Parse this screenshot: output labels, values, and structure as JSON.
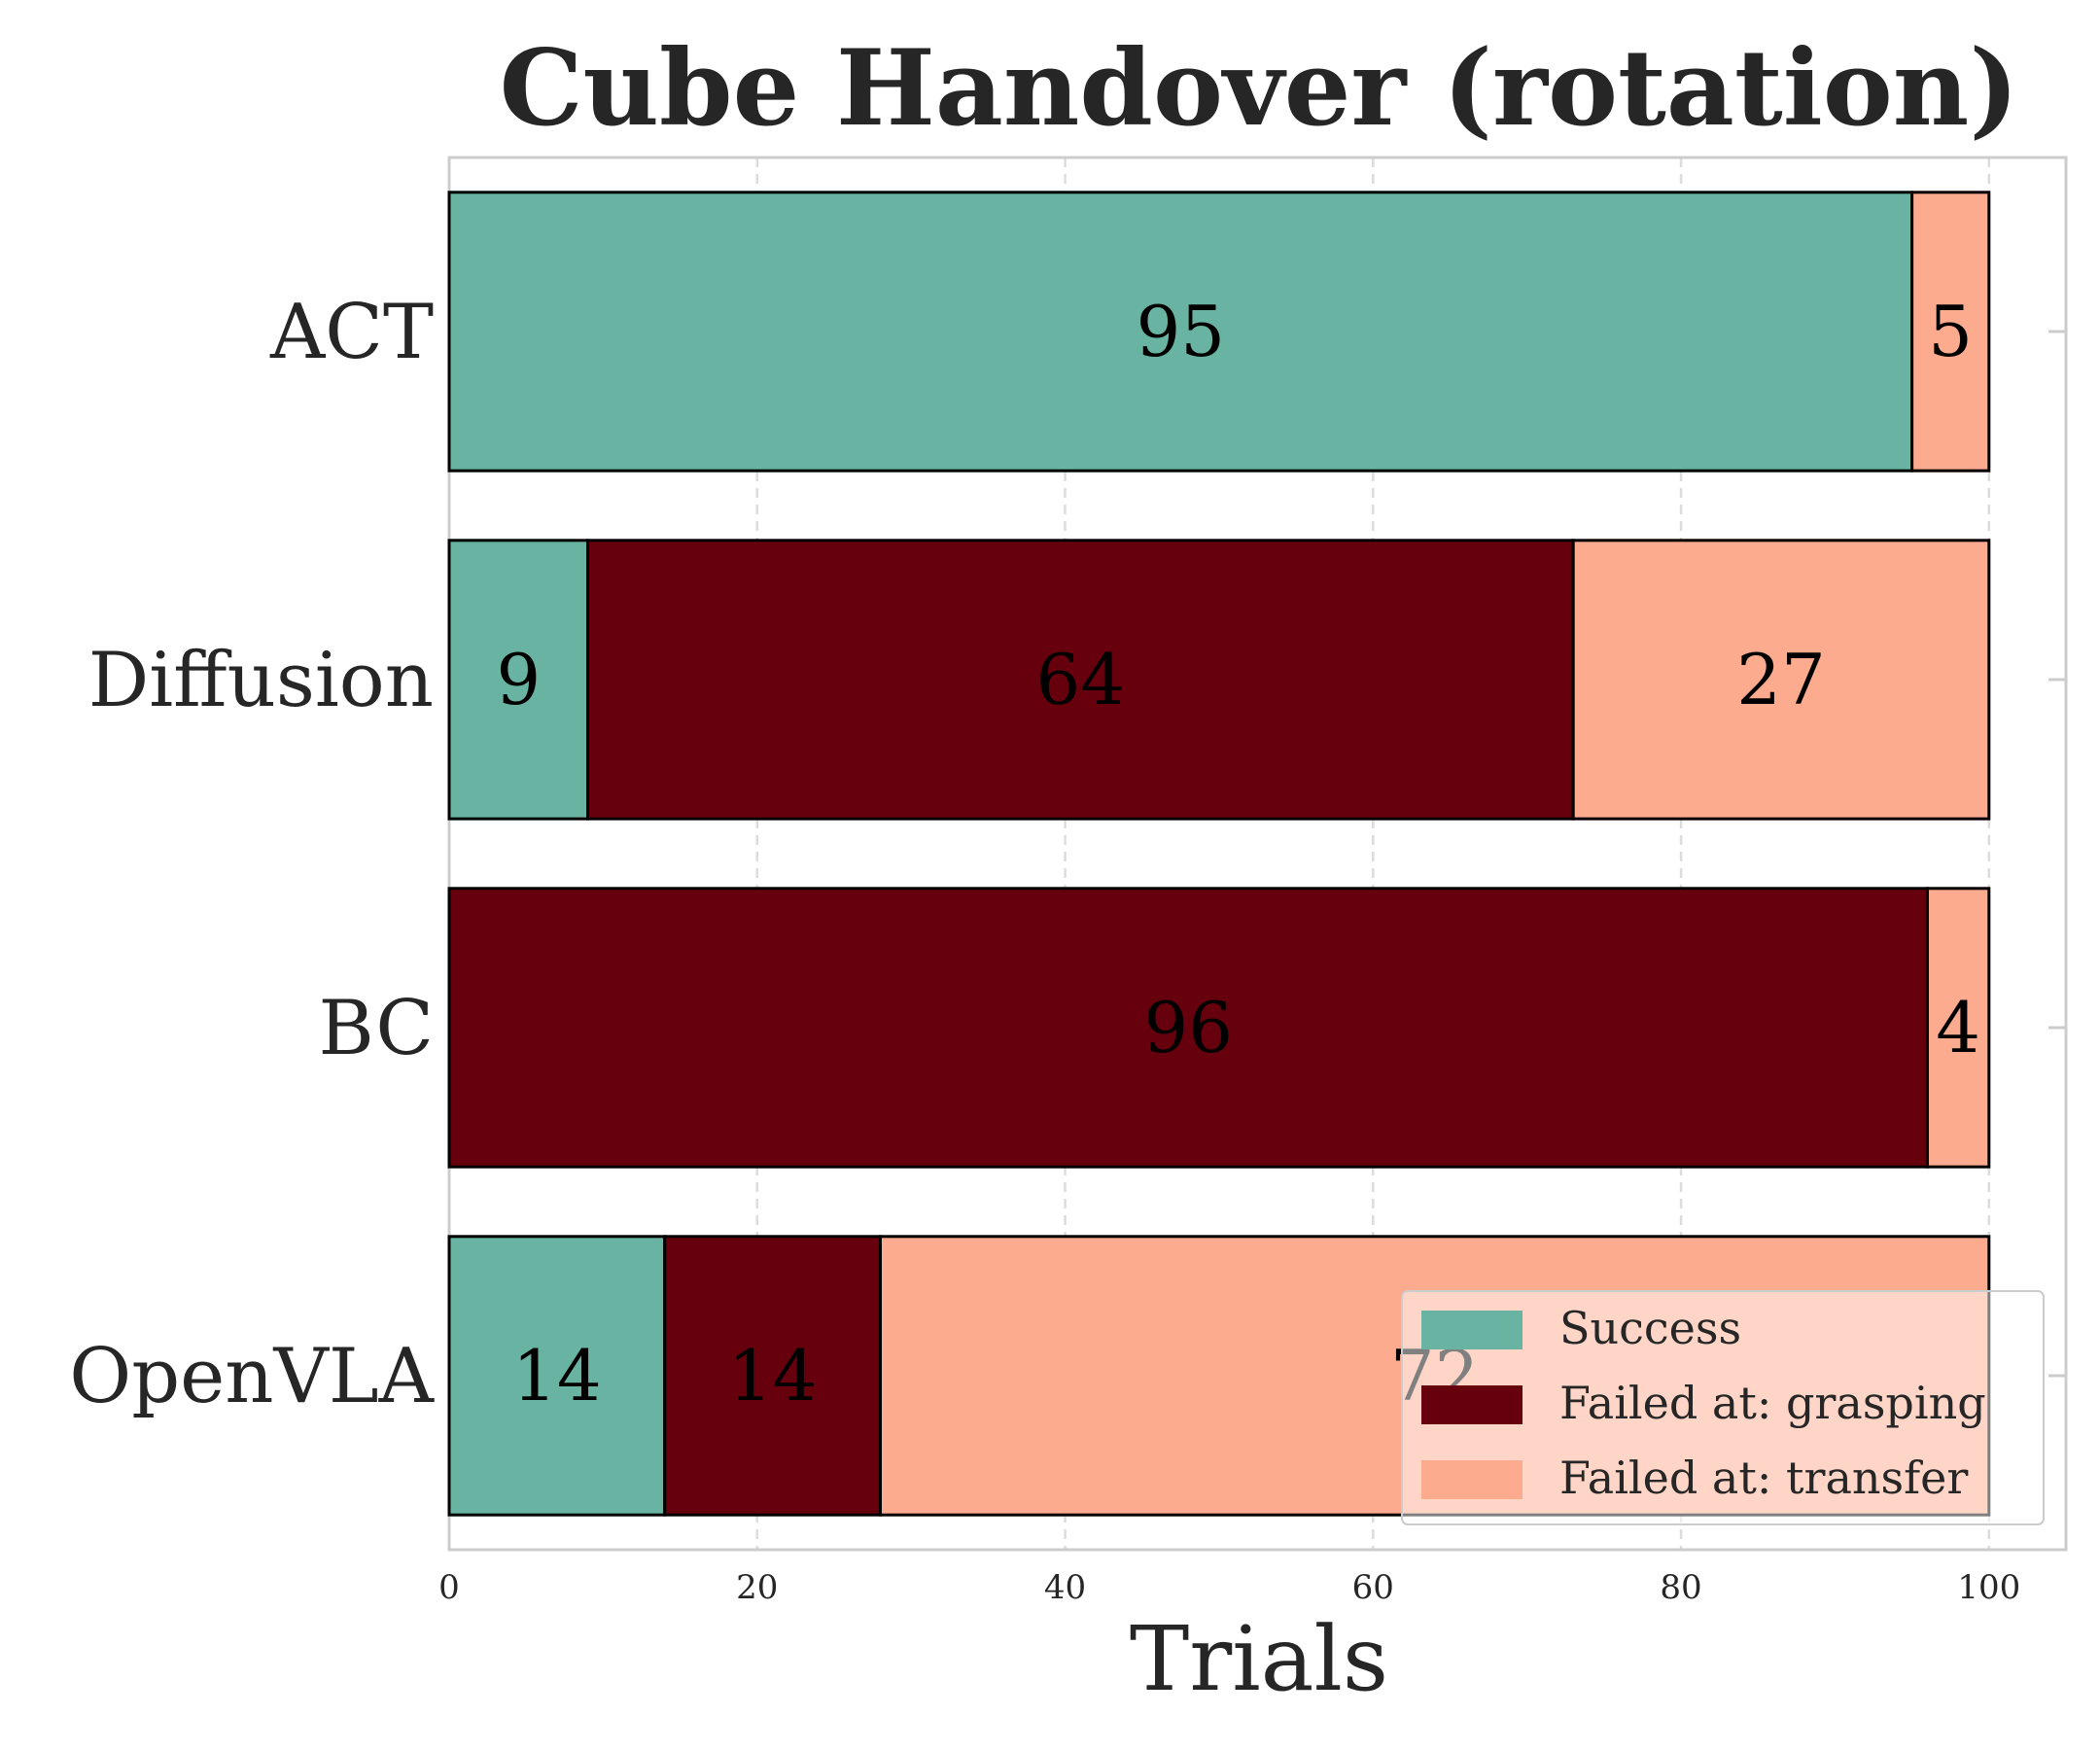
{
  "chart_data": {
    "type": "bar",
    "orientation": "horizontal",
    "stacked": true,
    "title": "Cube Handover (rotation)",
    "xlabel": "Trials",
    "ylabel": "",
    "xlim": [
      0,
      105
    ],
    "xticks": [
      0,
      20,
      40,
      60,
      80,
      100
    ],
    "grid": true,
    "legend_position": "lower-right",
    "categories": [
      "ACT",
      "Diffusion",
      "BC",
      "OpenVLA"
    ],
    "series": [
      {
        "name": "Success",
        "color": "#69b3a2",
        "values": [
          95,
          9,
          0,
          14
        ]
      },
      {
        "name": "Failed at: grasping",
        "color": "#67000d",
        "values": [
          0,
          64,
          96,
          14
        ]
      },
      {
        "name": "Failed at: transfer",
        "color": "#fcab8f",
        "values": [
          5,
          27,
          4,
          72
        ]
      }
    ]
  }
}
